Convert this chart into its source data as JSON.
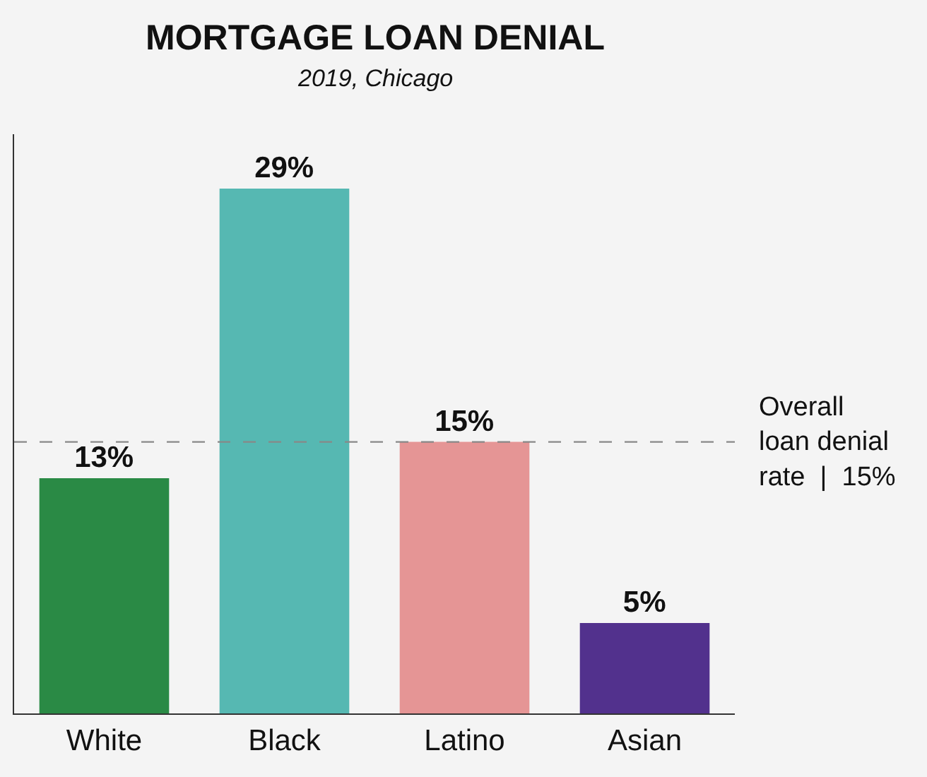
{
  "chart_data": {
    "type": "bar",
    "title": "MORTGAGE LOAN DENIAL",
    "subtitle": "2019, Chicago",
    "categories": [
      "White",
      "Black",
      "Latino",
      "Asian"
    ],
    "values": [
      13,
      29,
      15,
      5
    ],
    "colors": [
      "#2a8a45",
      "#56b8b2",
      "#e59595",
      "#52318d"
    ],
    "value_labels": [
      "13%",
      "29%",
      "15%",
      "5%"
    ],
    "ylim": [
      0,
      32
    ],
    "tick_labels": "x",
    "grid": false,
    "legend": false,
    "ref_lines": [
      {
        "axis": "y",
        "value": 15,
        "label": "Overall\nloan denial\nrate  |  15%",
        "color": "#888888",
        "line_style": "dashed"
      }
    ]
  }
}
